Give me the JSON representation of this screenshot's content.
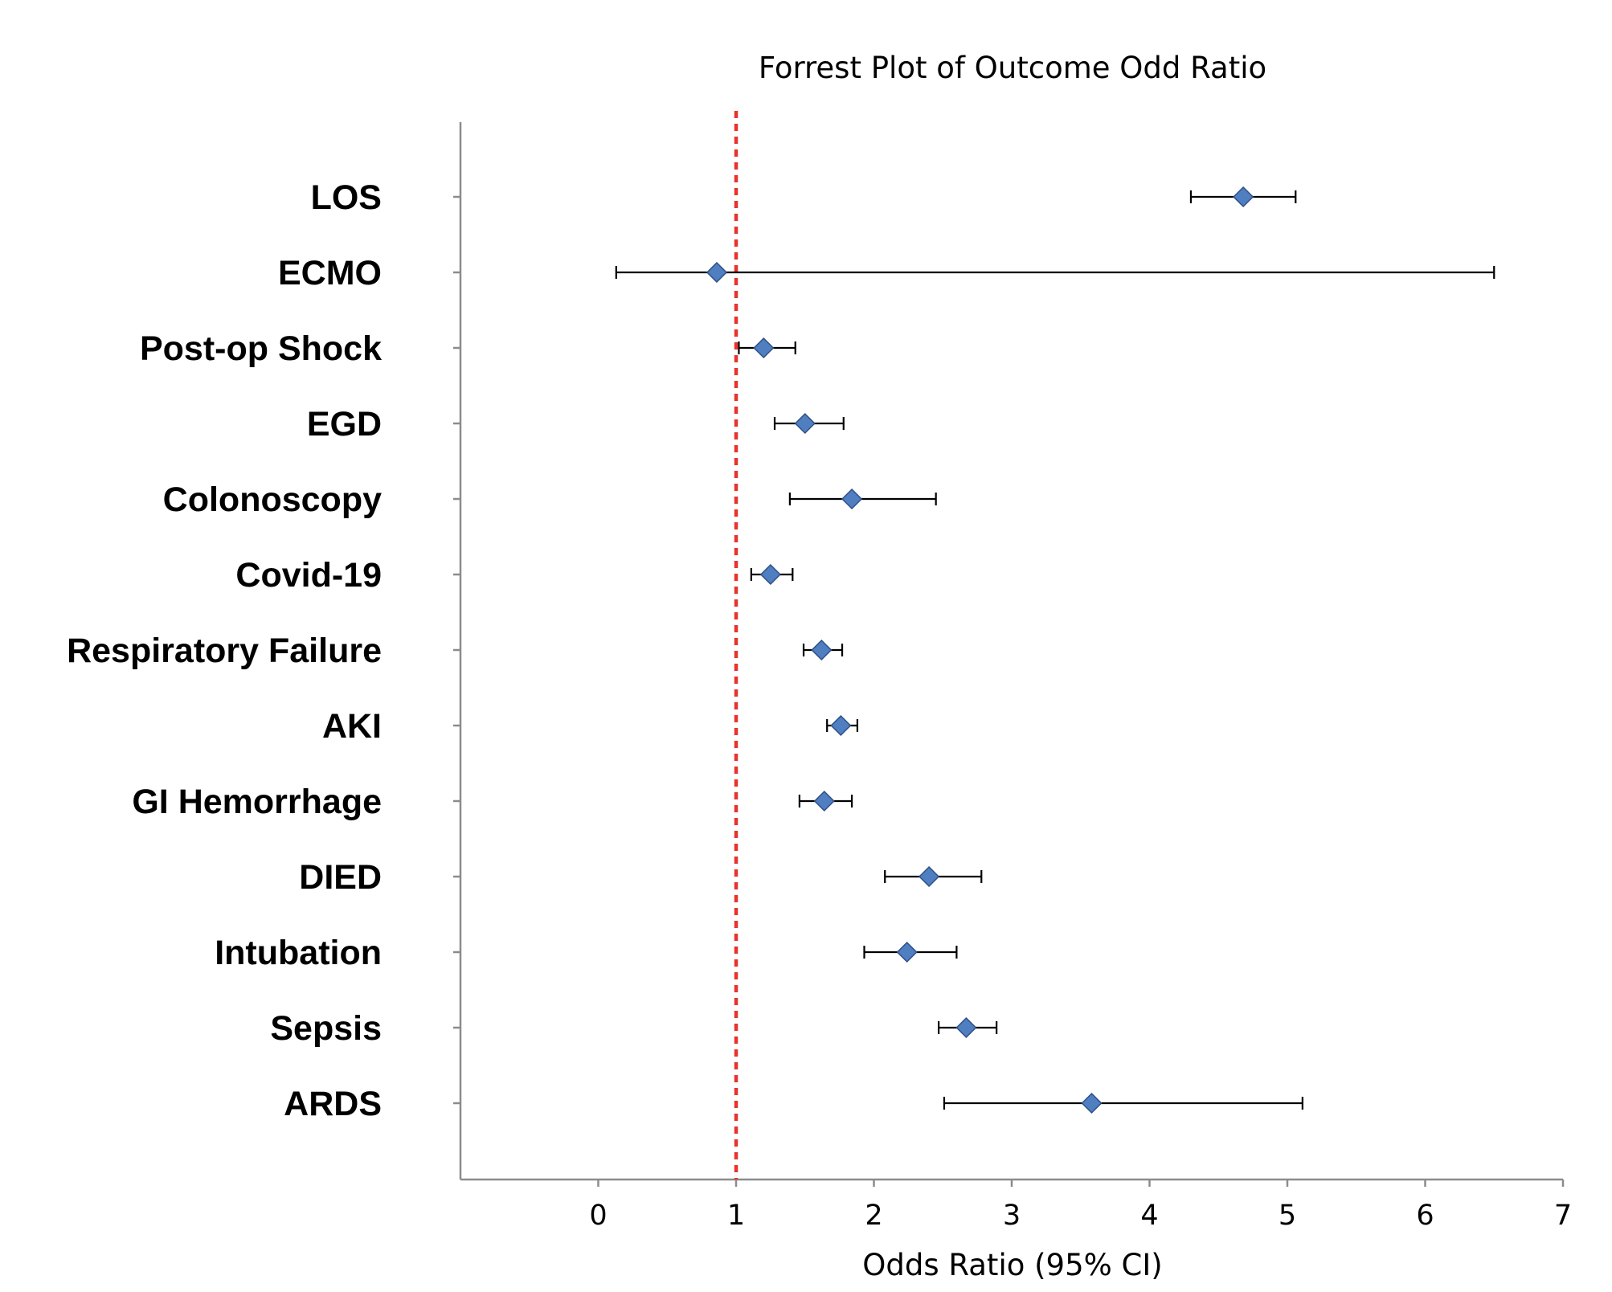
{
  "chart_data": {
    "type": "scatter",
    "title": "Forrest Plot of Outcome Odd Ratio",
    "xlabel": "Odds Ratio (95% CI)",
    "ylabel": "",
    "xlim": [
      -1,
      7
    ],
    "xticks": [
      0,
      1,
      2,
      3,
      4,
      5,
      6,
      7
    ],
    "reference_line": {
      "x": 1,
      "color": "#e8322b",
      "style": "dashed"
    },
    "marker": {
      "shape": "diamond",
      "color": "#4f7ec1"
    },
    "grid": false,
    "categories": [
      "LOS",
      "ECMO",
      "Post-op Shock",
      "EGD",
      "Colonoscopy",
      "Covid-19",
      "Respiratory Failure",
      "AKI",
      "GI Hemorrhage",
      "DIED",
      "Intubation",
      "Sepsis",
      "ARDS"
    ],
    "series": [
      {
        "estimate": [
          4.68,
          0.86,
          1.2,
          1.5,
          1.84,
          1.25,
          1.62,
          1.76,
          1.64,
          2.4,
          2.24,
          2.67,
          3.58
        ],
        "ci_low": [
          4.3,
          0.13,
          1.02,
          1.28,
          1.39,
          1.11,
          1.49,
          1.66,
          1.46,
          2.08,
          1.93,
          2.47,
          2.51
        ],
        "ci_high": [
          5.06,
          6.5,
          1.43,
          1.78,
          2.45,
          1.41,
          1.77,
          1.88,
          1.84,
          2.78,
          2.6,
          2.89,
          5.11
        ]
      }
    ]
  }
}
